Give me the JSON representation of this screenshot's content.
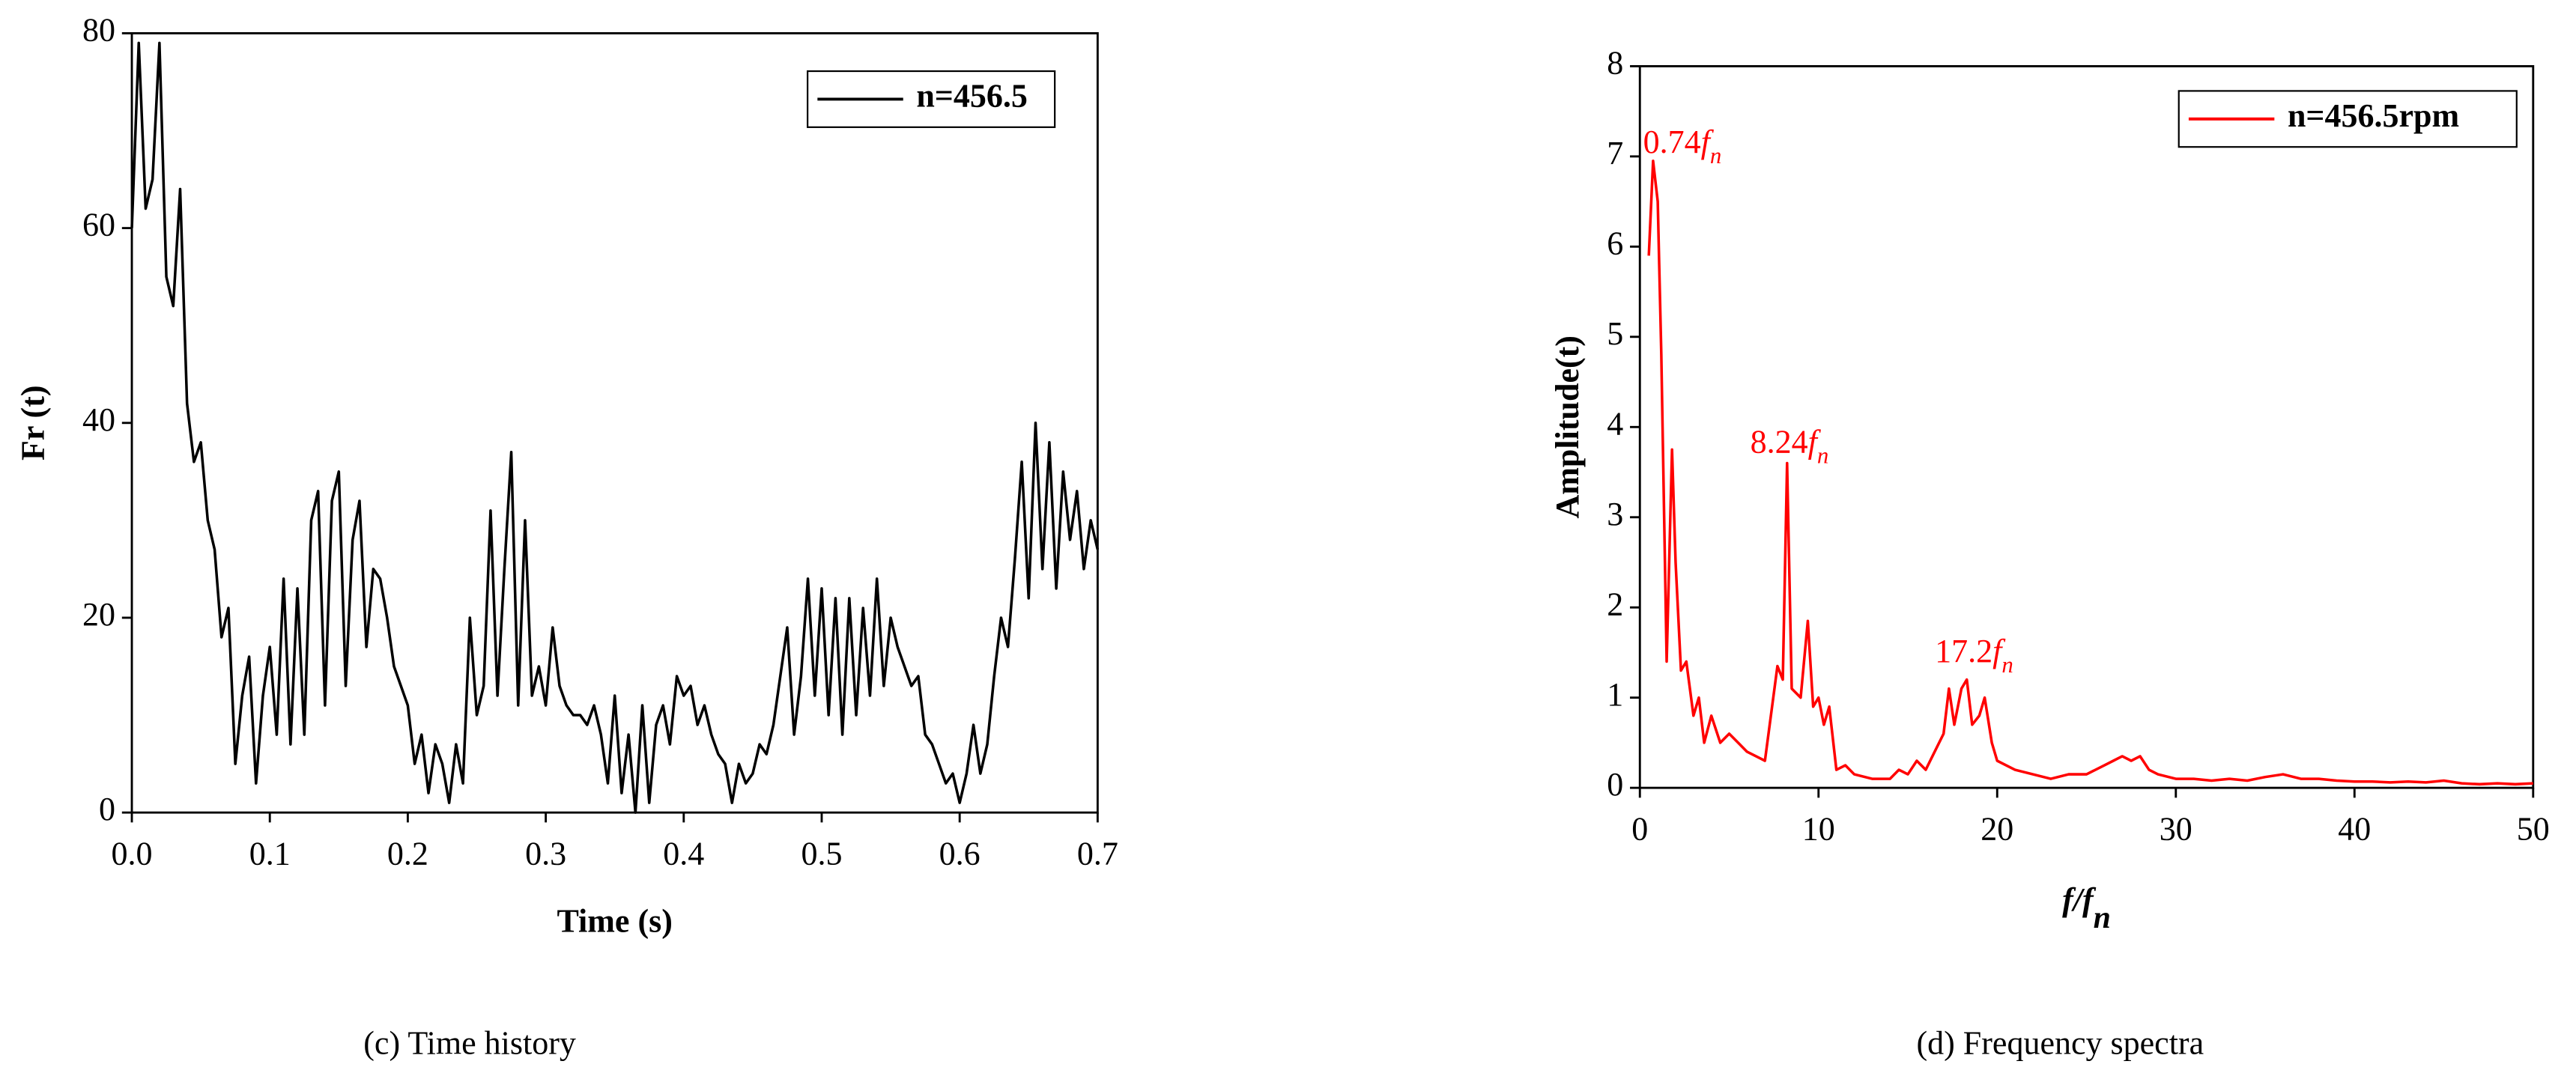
{
  "chart_data": [
    {
      "type": "line",
      "xlabel": "Time (s)",
      "ylabel": "Fr (t)",
      "caption": "(c) Time history",
      "xlim": [
        0,
        0.7
      ],
      "ylim": [
        0,
        80
      ],
      "xticks": [
        {
          "value": 0,
          "label": "0.0"
        },
        0.1,
        0.2,
        0.3,
        0.4,
        0.5,
        0.6,
        0.7
      ],
      "yticks": [
        0,
        20,
        40,
        60,
        80
      ],
      "legend": "upper right",
      "x": [
        0,
        0.005,
        0.01,
        0.015,
        0.02,
        0.025,
        0.03,
        0.035,
        0.04,
        0.045,
        0.05,
        0.055,
        0.06,
        0.065,
        0.07,
        0.075,
        0.08,
        0.085,
        0.09,
        0.095,
        0.1,
        0.105,
        0.11,
        0.115,
        0.12,
        0.125,
        0.13,
        0.135,
        0.14,
        0.145,
        0.15,
        0.155,
        0.16,
        0.165,
        0.17,
        0.175,
        0.18,
        0.185,
        0.19,
        0.195,
        0.2,
        0.205,
        0.21,
        0.215,
        0.22,
        0.225,
        0.23,
        0.235,
        0.24,
        0.245,
        0.25,
        0.255,
        0.26,
        0.265,
        0.27,
        0.275,
        0.28,
        0.285,
        0.29,
        0.295,
        0.3,
        0.305,
        0.31,
        0.315,
        0.32,
        0.325,
        0.33,
        0.335,
        0.34,
        0.345,
        0.35,
        0.355,
        0.36,
        0.365,
        0.37,
        0.375,
        0.38,
        0.385,
        0.39,
        0.395,
        0.4,
        0.405,
        0.41,
        0.415,
        0.42,
        0.425,
        0.43,
        0.435,
        0.44,
        0.445,
        0.45,
        0.455,
        0.46,
        0.465,
        0.47,
        0.475,
        0.48,
        0.485,
        0.49,
        0.495,
        0.5,
        0.505,
        0.51,
        0.515,
        0.52,
        0.525,
        0.53,
        0.535,
        0.54,
        0.545,
        0.55,
        0.555,
        0.56,
        0.565,
        0.57,
        0.575,
        0.58,
        0.585,
        0.59,
        0.595,
        0.6,
        0.605,
        0.61,
        0.615,
        0.62,
        0.625,
        0.63,
        0.635,
        0.64,
        0.645,
        0.65,
        0.655,
        0.66,
        0.665,
        0.67,
        0.675,
        0.68,
        0.685,
        0.69,
        0.695,
        0.7
      ],
      "series": [
        {
          "name": "n=456.5",
          "color": "#000000",
          "values": [
            60,
            79,
            62,
            65,
            79,
            55,
            52,
            64,
            42,
            36,
            38,
            30,
            27,
            18,
            21,
            5,
            12,
            16,
            3,
            12,
            17,
            8,
            24,
            7,
            23,
            8,
            30,
            33,
            11,
            32,
            35,
            13,
            28,
            32,
            17,
            25,
            24,
            20,
            15,
            13,
            11,
            5,
            8,
            2,
            7,
            5,
            1,
            7,
            3,
            20,
            10,
            13,
            31,
            12,
            25,
            37,
            11,
            30,
            12,
            15,
            11,
            19,
            13,
            11,
            10,
            10,
            9,
            11,
            8,
            3,
            12,
            2,
            8,
            0,
            11,
            1,
            9,
            11,
            7,
            14,
            12,
            13,
            9,
            11,
            8,
            6,
            5,
            1,
            5,
            3,
            4,
            7,
            6,
            9,
            14,
            19,
            8,
            14,
            24,
            12,
            23,
            10,
            22,
            8,
            22,
            10,
            21,
            12,
            24,
            13,
            20,
            17,
            15,
            13,
            14,
            8,
            7,
            5,
            3,
            4,
            1,
            4,
            9,
            4,
            7,
            14,
            20,
            17,
            26,
            36,
            22,
            40,
            25,
            38,
            23,
            35,
            28,
            33,
            25,
            30,
            27
          ]
        }
      ]
    },
    {
      "type": "line",
      "xlabel": "f/f",
      "xlabel_sub": "n",
      "ylabel": "Amplitude(t)",
      "caption": "(d) Frequency spectra",
      "xlim": [
        0,
        50
      ],
      "ylim": [
        0,
        8
      ],
      "xticks": [
        0,
        10,
        20,
        30,
        40,
        50
      ],
      "yticks": [
        0,
        1,
        2,
        3,
        4,
        5,
        6,
        7,
        8
      ],
      "legend": "upper right",
      "annotations": [
        {
          "num": "0.74",
          "sym": "f",
          "sub": "n"
        },
        {
          "num": "8.24",
          "sym": "f",
          "sub": "n"
        },
        {
          "num": "17.2",
          "sym": "f",
          "sub": "n"
        }
      ],
      "x": [
        0.5,
        0.74,
        1,
        1.2,
        1.5,
        1.8,
        2,
        2.3,
        2.6,
        3,
        3.3,
        3.6,
        4,
        4.5,
        5,
        5.5,
        6,
        6.5,
        7,
        7.4,
        7.7,
        8,
        8.24,
        8.5,
        9,
        9.4,
        9.7,
        10,
        10.3,
        10.6,
        11,
        11.5,
        12,
        13,
        14,
        14.5,
        15,
        15.5,
        16,
        16.5,
        17,
        17.3,
        17.6,
        18,
        18.3,
        18.6,
        19,
        19.3,
        19.7,
        20,
        21,
        22,
        23,
        24,
        25,
        26,
        26.5,
        27,
        27.5,
        28,
        28.5,
        29,
        30,
        31,
        32,
        33,
        34,
        35,
        36,
        37,
        38,
        39,
        40,
        41,
        42,
        43,
        44,
        45,
        46,
        47,
        48,
        49,
        50
      ],
      "series": [
        {
          "name": "n=456.5rpm",
          "color": "#ff0000",
          "values": [
            5.9,
            6.95,
            6.5,
            4.8,
            1.4,
            3.75,
            2.5,
            1.3,
            1.4,
            0.8,
            1.0,
            0.5,
            0.8,
            0.5,
            0.6,
            0.5,
            0.4,
            0.35,
            0.3,
            0.9,
            1.35,
            1.2,
            3.6,
            1.1,
            1.0,
            1.85,
            0.9,
            1.0,
            0.7,
            0.9,
            0.2,
            0.25,
            0.15,
            0.1,
            0.1,
            0.2,
            0.15,
            0.3,
            0.2,
            0.4,
            0.6,
            1.1,
            0.7,
            1.1,
            1.2,
            0.7,
            0.8,
            1.0,
            0.5,
            0.3,
            0.2,
            0.15,
            0.1,
            0.15,
            0.15,
            0.25,
            0.3,
            0.35,
            0.3,
            0.35,
            0.2,
            0.15,
            0.1,
            0.1,
            0.08,
            0.1,
            0.08,
            0.12,
            0.15,
            0.1,
            0.1,
            0.08,
            0.07,
            0.07,
            0.06,
            0.07,
            0.06,
            0.08,
            0.05,
            0.04,
            0.05,
            0.04,
            0.05
          ]
        }
      ]
    }
  ]
}
